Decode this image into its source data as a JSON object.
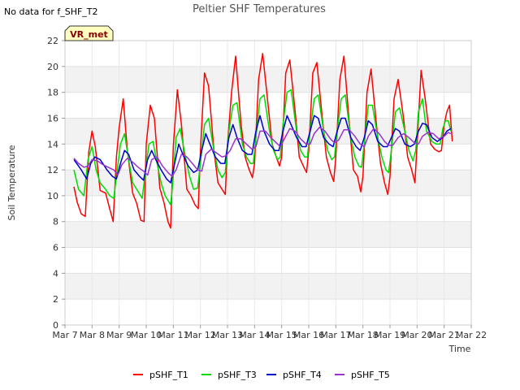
{
  "note": "No data for f_SHF_T2",
  "badge": "VR_met",
  "chart_data": {
    "type": "line",
    "title": "Peltier SHF Temperatures",
    "xlabel": "Time",
    "ylabel": "Soil Temperature",
    "ylim": [
      0,
      22
    ],
    "yticks": [
      "0",
      "2",
      "4",
      "6",
      "8",
      "10",
      "12",
      "14",
      "16",
      "18",
      "20",
      "22"
    ],
    "xlim": [
      7,
      22
    ],
    "xticks": [
      "Mar 7",
      "Mar 8",
      "Mar 9",
      "Mar 10",
      "Mar 11",
      "Mar 12",
      "Mar 13",
      "Mar 14",
      "Mar 15",
      "Mar 16",
      "Mar 17",
      "Mar 18",
      "Mar 19",
      "Mar 20",
      "Mar 21",
      "Mar 22"
    ],
    "grid": true,
    "legend_position": "bottom",
    "series": [
      {
        "name": "pSHF_T1",
        "color": "#ff0000",
        "x": [
          7.33,
          7.45,
          7.6,
          7.75,
          7.88,
          8.0,
          8.12,
          8.3,
          8.5,
          8.65,
          8.78,
          8.9,
          9.0,
          9.15,
          9.3,
          9.5,
          9.65,
          9.8,
          9.92,
          10.0,
          10.15,
          10.3,
          10.5,
          10.65,
          10.8,
          10.9,
          11.0,
          11.15,
          11.3,
          11.5,
          11.65,
          11.8,
          11.92,
          12.0,
          12.15,
          12.3,
          12.5,
          12.65,
          12.8,
          12.92,
          13.0,
          13.15,
          13.3,
          13.5,
          13.65,
          13.8,
          13.92,
          14.0,
          14.15,
          14.3,
          14.5,
          14.65,
          14.8,
          14.92,
          15.0,
          15.15,
          15.3,
          15.5,
          15.65,
          15.8,
          15.92,
          16.0,
          16.15,
          16.3,
          16.5,
          16.65,
          16.8,
          16.92,
          17.0,
          17.15,
          17.3,
          17.5,
          17.65,
          17.8,
          17.92,
          18.0,
          18.15,
          18.3,
          18.5,
          18.65,
          18.8,
          18.92,
          19.0,
          19.15,
          19.3,
          19.5,
          19.65,
          19.8,
          19.92,
          20.0,
          20.15,
          20.3,
          20.5,
          20.65,
          20.8,
          20.9,
          21.0,
          21.1,
          21.2,
          21.3
        ],
        "y": [
          10.7,
          9.5,
          8.6,
          8.4,
          13.4,
          15.0,
          13.8,
          10.4,
          10.2,
          9.0,
          8.0,
          13.0,
          15.3,
          17.5,
          13.5,
          10.2,
          9.4,
          8.1,
          8.0,
          14.0,
          17.0,
          16.0,
          10.6,
          9.5,
          8.0,
          7.5,
          13.8,
          18.2,
          15.5,
          10.5,
          10.0,
          9.3,
          9.0,
          13.5,
          19.5,
          18.5,
          13.5,
          11.0,
          10.5,
          10.1,
          14.0,
          18.0,
          20.8,
          15.5,
          13.0,
          12.0,
          11.4,
          12.5,
          19.0,
          21.0,
          17.0,
          14.0,
          13.0,
          12.3,
          13.0,
          19.5,
          20.5,
          16.5,
          13.0,
          12.3,
          11.8,
          13.5,
          19.5,
          20.3,
          16.0,
          13.0,
          11.8,
          11.1,
          13.0,
          19.0,
          20.8,
          15.5,
          12.0,
          11.5,
          10.3,
          11.5,
          18.0,
          19.8,
          15.5,
          12.5,
          11.0,
          10.1,
          11.5,
          17.5,
          19.0,
          16.0,
          13.0,
          12.0,
          11.0,
          14.0,
          19.7,
          17.5,
          14.0,
          13.6,
          13.4,
          13.5,
          15.5,
          16.5,
          17.0,
          14.2
        ]
      },
      {
        "name": "pSHF_T3",
        "color": "#00dd00",
        "x": [
          7.33,
          7.5,
          7.7,
          7.85,
          8.0,
          8.15,
          8.3,
          8.5,
          8.65,
          8.8,
          8.9,
          9.05,
          9.2,
          9.35,
          9.5,
          9.65,
          9.85,
          9.95,
          10.1,
          10.25,
          10.4,
          10.55,
          10.7,
          10.9,
          10.98,
          11.1,
          11.25,
          11.45,
          11.6,
          11.75,
          11.9,
          12.0,
          12.15,
          12.3,
          12.5,
          12.65,
          12.8,
          12.92,
          13.05,
          13.2,
          13.35,
          13.55,
          13.7,
          13.85,
          13.95,
          14.05,
          14.2,
          14.35,
          14.55,
          14.7,
          14.85,
          14.95,
          15.05,
          15.2,
          15.35,
          15.55,
          15.7,
          15.85,
          15.95,
          16.05,
          16.2,
          16.35,
          16.55,
          16.7,
          16.85,
          16.95,
          17.05,
          17.2,
          17.35,
          17.55,
          17.7,
          17.85,
          17.95,
          18.05,
          18.2,
          18.35,
          18.55,
          18.7,
          18.85,
          18.95,
          19.05,
          19.2,
          19.35,
          19.55,
          19.7,
          19.85,
          19.95,
          20.05,
          20.2,
          20.35,
          20.55,
          20.7,
          20.85,
          20.95,
          21.05,
          21.15,
          21.25
        ],
        "y": [
          12.0,
          10.5,
          10.0,
          12.8,
          13.8,
          12.0,
          11.0,
          10.5,
          10.0,
          9.8,
          11.5,
          14.0,
          14.8,
          12.8,
          11.0,
          10.5,
          9.8,
          11.5,
          14.0,
          14.2,
          12.5,
          11.0,
          10.0,
          9.3,
          11.0,
          14.5,
          15.2,
          13.0,
          11.5,
          10.5,
          10.6,
          12.5,
          15.5,
          16.0,
          13.5,
          12.0,
          11.4,
          11.8,
          15.0,
          17.0,
          17.2,
          14.0,
          13.0,
          12.5,
          12.5,
          14.5,
          17.5,
          17.8,
          15.0,
          13.5,
          12.8,
          13.0,
          15.5,
          18.0,
          18.2,
          15.0,
          13.5,
          13.0,
          13.0,
          15.0,
          17.5,
          17.8,
          15.0,
          13.5,
          12.8,
          13.0,
          15.0,
          17.5,
          17.8,
          14.5,
          13.0,
          12.3,
          12.2,
          14.0,
          17.0,
          17.0,
          14.5,
          13.0,
          12.0,
          11.8,
          13.5,
          16.5,
          16.8,
          15.0,
          13.5,
          12.7,
          13.5,
          16.5,
          17.5,
          15.0,
          14.2,
          14.0,
          14.0,
          15.2,
          15.8,
          15.8,
          15.0
        ]
      },
      {
        "name": "pSHF_T4",
        "color": "#0000cc",
        "x": [
          7.33,
          7.6,
          7.8,
          7.95,
          8.1,
          8.3,
          8.55,
          8.75,
          8.9,
          9.05,
          9.2,
          9.35,
          9.55,
          9.75,
          9.9,
          10.05,
          10.2,
          10.35,
          10.55,
          10.75,
          10.9,
          11.05,
          11.2,
          11.35,
          11.55,
          11.75,
          11.9,
          12.05,
          12.2,
          12.35,
          12.55,
          12.75,
          12.9,
          13.05,
          13.2,
          13.35,
          13.55,
          13.75,
          13.9,
          14.05,
          14.2,
          14.35,
          14.55,
          14.75,
          14.9,
          15.05,
          15.2,
          15.35,
          15.55,
          15.75,
          15.9,
          16.05,
          16.2,
          16.35,
          16.55,
          16.75,
          16.9,
          17.05,
          17.2,
          17.35,
          17.55,
          17.75,
          17.9,
          18.05,
          18.2,
          18.35,
          18.55,
          18.75,
          18.9,
          19.05,
          19.2,
          19.35,
          19.55,
          19.75,
          19.9,
          20.05,
          20.2,
          20.35,
          20.55,
          20.75,
          20.95,
          21.1,
          21.25
        ],
        "y": [
          12.8,
          12.0,
          11.3,
          12.5,
          13.0,
          12.8,
          12.0,
          11.5,
          11.3,
          12.5,
          13.5,
          13.2,
          12.0,
          11.5,
          11.2,
          12.8,
          13.5,
          12.8,
          12.0,
          11.3,
          11.0,
          12.5,
          14.0,
          13.2,
          12.3,
          11.8,
          12.0,
          13.5,
          14.8,
          14.0,
          13.0,
          12.5,
          12.5,
          14.5,
          15.5,
          14.5,
          13.5,
          13.2,
          13.2,
          15.0,
          16.2,
          15.0,
          14.0,
          13.5,
          13.5,
          15.0,
          16.2,
          15.5,
          14.5,
          13.8,
          13.8,
          15.0,
          16.2,
          16.0,
          14.5,
          14.0,
          13.8,
          15.0,
          16.0,
          16.0,
          14.5,
          13.8,
          13.5,
          14.5,
          15.8,
          15.5,
          14.2,
          13.8,
          13.8,
          14.5,
          15.2,
          15.0,
          14.0,
          13.8,
          14.0,
          15.0,
          15.6,
          15.5,
          14.5,
          14.2,
          14.5,
          15.0,
          15.2
        ]
      },
      {
        "name": "pSHF_T5",
        "color": "#9933cc",
        "x": [
          7.33,
          7.5,
          7.7,
          7.85,
          8.0,
          8.2,
          8.4,
          8.6,
          8.8,
          8.95,
          9.1,
          9.3,
          9.5,
          9.7,
          9.9,
          10.05,
          10.2,
          10.4,
          10.6,
          10.8,
          10.95,
          11.1,
          11.3,
          11.5,
          11.7,
          11.9,
          12.05,
          12.2,
          12.4,
          12.6,
          12.8,
          12.95,
          13.1,
          13.3,
          13.5,
          13.7,
          13.9,
          14.05,
          14.2,
          14.4,
          14.6,
          14.8,
          14.95,
          15.1,
          15.3,
          15.5,
          15.7,
          15.9,
          16.05,
          16.2,
          16.4,
          16.6,
          16.8,
          16.95,
          17.1,
          17.3,
          17.5,
          17.7,
          17.9,
          18.05,
          18.2,
          18.4,
          18.6,
          18.8,
          18.95,
          19.1,
          19.3,
          19.5,
          19.7,
          19.9,
          20.05,
          20.2,
          20.4,
          20.6,
          20.8,
          21.0,
          21.15,
          21.25
        ],
        "y": [
          12.9,
          12.5,
          12.2,
          12.3,
          12.8,
          12.7,
          12.4,
          12.2,
          12.0,
          11.6,
          12.4,
          12.9,
          12.6,
          12.2,
          11.9,
          11.6,
          12.8,
          13.0,
          12.3,
          11.8,
          11.5,
          12.0,
          13.2,
          13.0,
          12.5,
          12.0,
          11.9,
          13.2,
          13.6,
          13.3,
          13.0,
          13.1,
          13.5,
          14.4,
          14.4,
          14.0,
          13.6,
          13.8,
          15.0,
          15.0,
          14.5,
          14.1,
          13.8,
          14.4,
          15.2,
          15.0,
          14.4,
          14.0,
          14.0,
          14.8,
          15.3,
          15.0,
          14.4,
          14.1,
          14.3,
          15.1,
          15.1,
          14.6,
          14.0,
          13.8,
          14.6,
          15.2,
          14.8,
          14.2,
          13.9,
          13.9,
          14.5,
          14.8,
          14.5,
          14.1,
          14.0,
          14.6,
          14.9,
          14.8,
          14.4,
          14.6,
          14.9,
          14.8
        ]
      }
    ]
  }
}
